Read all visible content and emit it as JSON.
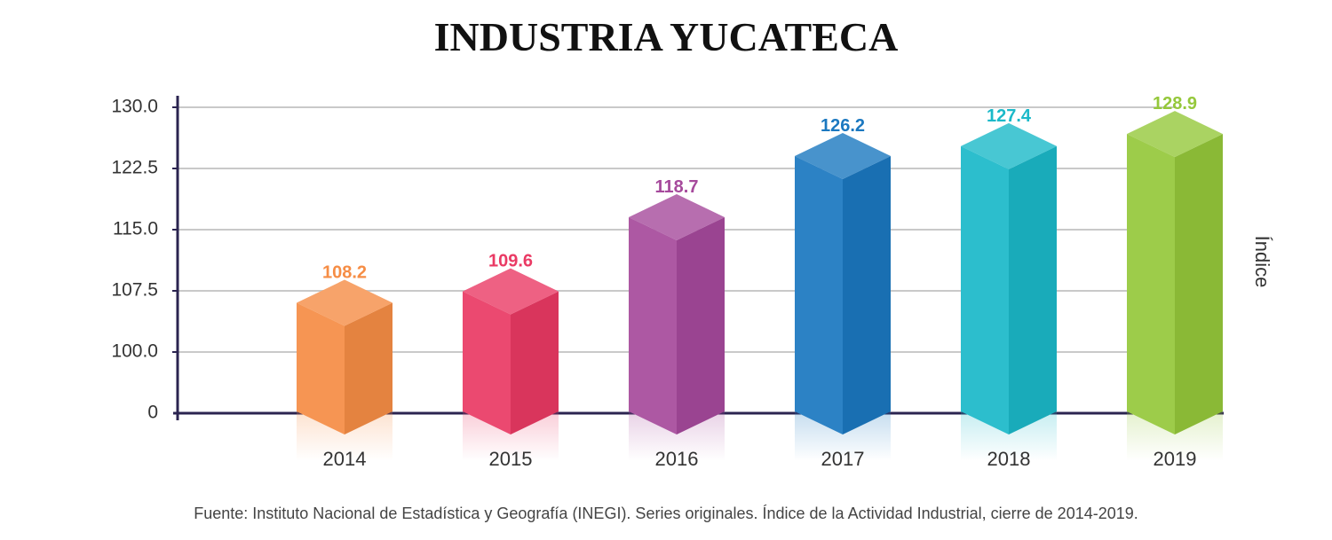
{
  "chart_data": {
    "type": "bar3d",
    "title": "INDUSTRIA YUCATECA",
    "categories": [
      "2014",
      "2015",
      "2016",
      "2017",
      "2018",
      "2019"
    ],
    "values": [
      108.2,
      109.6,
      118.7,
      126.2,
      127.4,
      128.9
    ],
    "colors": [
      "#f68d45",
      "#ea3a64",
      "#a64a9c",
      "#1b78c0",
      "#1bb9c9",
      "#95c83b"
    ],
    "ylim": [
      0,
      130
    ],
    "yticks": [
      0,
      {
        "value": 100,
        "label": "100.0"
      },
      {
        "value": 107.5,
        "label": "107.5"
      },
      {
        "value": 115,
        "label": "115.0"
      },
      {
        "value": 122.5,
        "label": "122.5"
      },
      {
        "value": 130,
        "label": "130.0"
      }
    ],
    "y_label": "Índice",
    "grid": true,
    "source": "Fuente: Instituto Nacional de Estadística y Geografía (INEGI). Series originales. Índice de la Actividad Industrial, cierre de 2014-2019."
  }
}
